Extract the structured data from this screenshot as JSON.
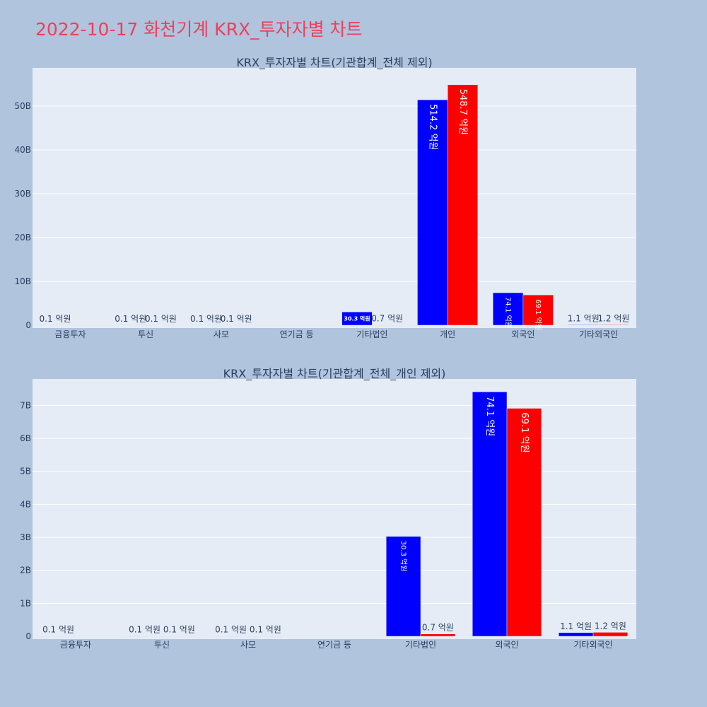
{
  "page": {
    "title": "2022-10-17 화천기계 KRX_투자자별 차트",
    "background": "#b0c4de",
    "plot_background": "#e5ecf6",
    "title_color": "#ef3f5a"
  },
  "colors": {
    "series_a": "#0000ff",
    "series_b": "#ff0000"
  },
  "chart_data": [
    {
      "type": "bar",
      "title": "KRX_투자자별 차트(기관합계_전체 제외)",
      "categories": [
        "금융투자",
        "투신",
        "사모",
        "연기금 등",
        "기타법인",
        "개인",
        "외국인",
        "기타외국인"
      ],
      "series": [
        {
          "color": "#0000ff",
          "values": [
            10000000,
            10000000,
            10000000,
            0,
            3030000000,
            51420000000,
            7410000000,
            110000000
          ],
          "labels": [
            "0.1 억원",
            "0.1 억원",
            "0.1 억원",
            "",
            "30.3 억원",
            "514.2 억원",
            "74.1 억원",
            "1.1 억원"
          ]
        },
        {
          "color": "#ff0000",
          "values": [
            0,
            10000000,
            10000000,
            0,
            70000000,
            54870000000,
            6910000000,
            120000000
          ],
          "labels": [
            "",
            "0.1 억원",
            "0.1 억원",
            "",
            "0.7 억원",
            "548.7 억원",
            "69.1 억원",
            "1.2 억원"
          ]
        }
      ],
      "yticks": [
        0,
        10000000000,
        20000000000,
        30000000000,
        40000000000,
        50000000000
      ],
      "ytick_labels": [
        "0",
        "10B",
        "20B",
        "30B",
        "40B",
        "50B"
      ],
      "ylim": [
        0,
        58700000000
      ],
      "grid": true
    },
    {
      "type": "bar",
      "title": "KRX_투자자별 차트(기관합계_전체_개인 제외)",
      "categories": [
        "금융투자",
        "투신",
        "사모",
        "연기금 등",
        "기타법인",
        "외국인",
        "기타외국인"
      ],
      "series": [
        {
          "color": "#0000ff",
          "values": [
            10000000,
            10000000,
            10000000,
            0,
            3030000000,
            7410000000,
            110000000
          ],
          "labels": [
            "0.1 억원",
            "0.1 억원",
            "0.1 억원",
            "",
            "30.3 억원",
            "74.1 억원",
            "1.1 억원"
          ]
        },
        {
          "color": "#ff0000",
          "values": [
            0,
            10000000,
            10000000,
            0,
            70000000,
            6910000000,
            120000000
          ],
          "labels": [
            "",
            "0.1 억원",
            "0.1 억원",
            "",
            "0.7 억원",
            "69.1 억원",
            "1.2 억원"
          ]
        }
      ],
      "yticks": [
        0,
        1000000000,
        2000000000,
        3000000000,
        4000000000,
        5000000000,
        6000000000,
        7000000000
      ],
      "ytick_labels": [
        "0",
        "1B",
        "2B",
        "3B",
        "4B",
        "5B",
        "6B",
        "7B"
      ],
      "ylim": [
        0,
        7800000000
      ],
      "grid": true
    }
  ]
}
